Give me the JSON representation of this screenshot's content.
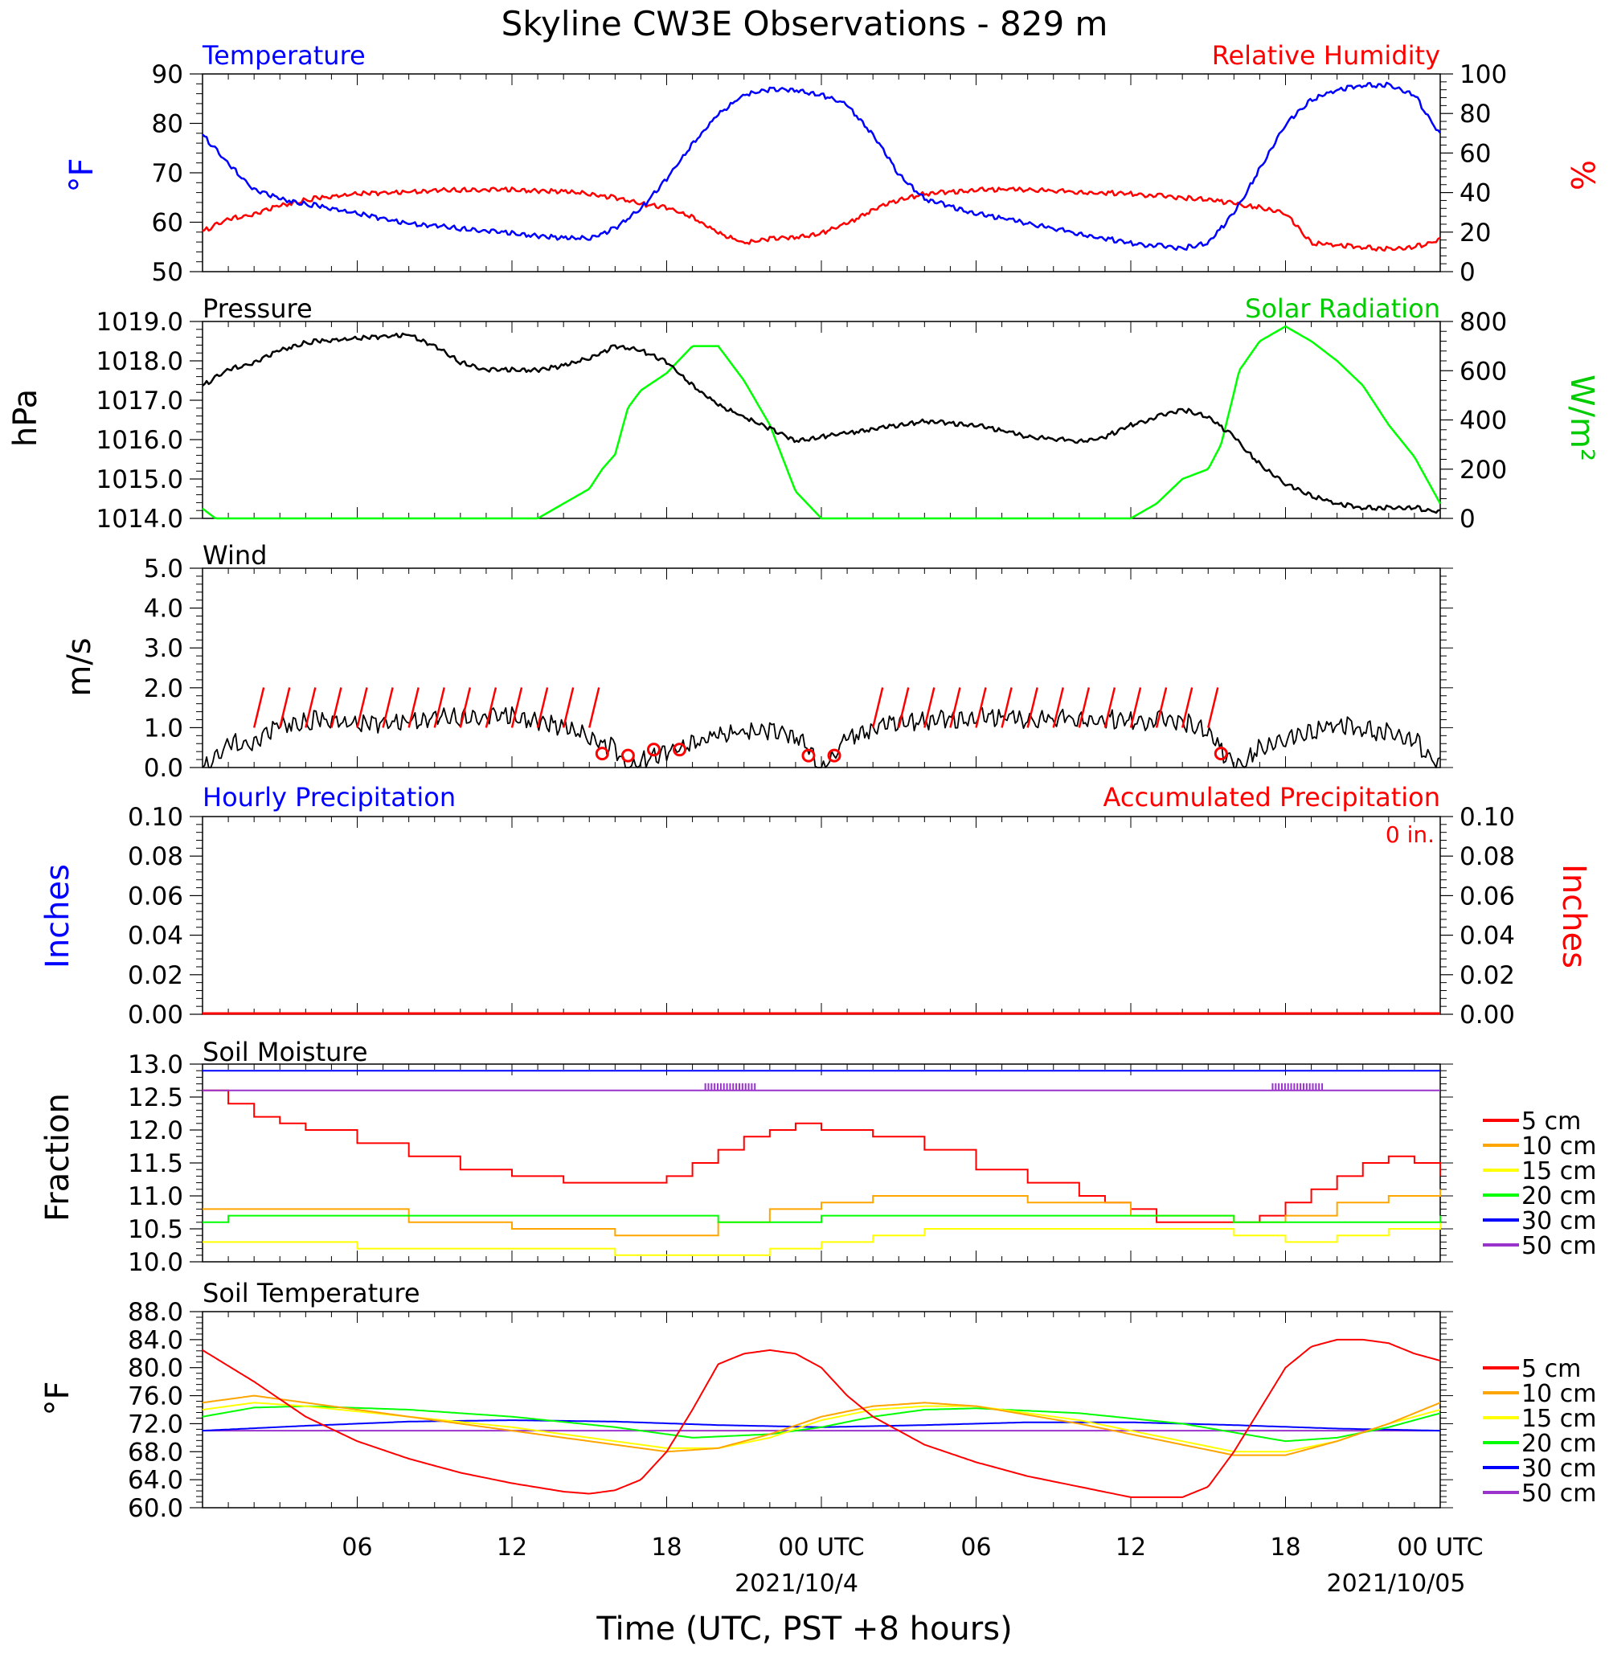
{
  "title": "Skyline CW3E Observations - 829 m",
  "time_axis": {
    "ticks": [
      "06",
      "12",
      "18",
      "00 UTC",
      "06",
      "12",
      "18",
      "00 UTC"
    ],
    "dates": [
      "2021/10/4",
      "2021/10/05"
    ],
    "xlabel": "Time (UTC, PST +8 hours)"
  },
  "colors": {
    "temperature": "#0000ff",
    "humidity": "#ff0000",
    "pressure": "#000000",
    "solar": "#00ff00",
    "wind": "#000000",
    "barb": "#ff0000"
  },
  "chart_data": [
    {
      "type": "line",
      "panel": "temperature-humidity",
      "left_title": "Temperature",
      "right_title": "Relative Humidity",
      "ylabel": "°F",
      "ylabel_right": "%",
      "ylim": [
        50,
        90
      ],
      "ylim_right": [
        0,
        100
      ],
      "yticks": [
        "90",
        "80",
        "70",
        "60",
        "50"
      ],
      "yticks_right": [
        "100",
        "80",
        "60",
        "40",
        "20",
        "0"
      ],
      "x_hours": [
        0,
        1,
        2,
        3,
        4,
        6,
        8,
        10,
        12,
        14,
        15,
        16,
        17,
        18,
        19,
        20,
        21,
        22,
        23,
        24,
        25,
        26,
        27,
        28,
        30,
        32,
        34,
        36,
        38,
        39,
        40,
        41,
        42,
        43,
        44,
        45,
        46,
        47,
        48
      ],
      "series": [
        {
          "name": "Temperature",
          "values": [
            78,
            72,
            67,
            65,
            64,
            62,
            60,
            59,
            58,
            57,
            57,
            59,
            63,
            69,
            76,
            82,
            86,
            87,
            87,
            86,
            84,
            78,
            70,
            65,
            62,
            60,
            58,
            56,
            55,
            56,
            62,
            71,
            80,
            85,
            87,
            88,
            88,
            86,
            78
          ]
        },
        {
          "name": "Relative Humidity",
          "values": [
            21,
            27,
            30,
            34,
            37,
            40,
            41,
            42,
            42,
            41,
            40,
            38,
            35,
            33,
            28,
            20,
            15,
            17,
            18,
            20,
            25,
            32,
            37,
            40,
            42,
            42,
            41,
            40,
            38,
            37,
            35,
            33,
            30,
            15,
            14,
            13,
            12,
            13,
            17
          ]
        }
      ]
    },
    {
      "type": "line",
      "panel": "pressure-solar",
      "left_title": "Pressure",
      "right_title": "Solar Radiation",
      "ylabel": "hPa",
      "ylabel_right": "W/m²",
      "ylim": [
        1014.0,
        1019.0
      ],
      "ylim_right": [
        0,
        800
      ],
      "yticks": [
        "1019.0",
        "1018.0",
        "1017.0",
        "1016.0",
        "1015.0",
        "1014.0"
      ],
      "yticks_right": [
        "800",
        "600",
        "400",
        "200",
        "0"
      ],
      "pressure_x": [
        0,
        1,
        2,
        3,
        4,
        6,
        8,
        9,
        10,
        11,
        12,
        13,
        14,
        15,
        16,
        17,
        18,
        19,
        20,
        21,
        22,
        23,
        24,
        25,
        26,
        27,
        28,
        30,
        32,
        34,
        35,
        36,
        37,
        38,
        39,
        40,
        41,
        42,
        43,
        44,
        45,
        46,
        47,
        48
      ],
      "pressure": [
        1017.4,
        1017.8,
        1018.0,
        1018.3,
        1018.5,
        1018.6,
        1018.7,
        1018.4,
        1018.0,
        1017.8,
        1017.8,
        1017.8,
        1017.9,
        1018.1,
        1018.4,
        1018.3,
        1018.0,
        1017.4,
        1016.9,
        1016.6,
        1016.3,
        1016.0,
        1016.1,
        1016.2,
        1016.3,
        1016.4,
        1016.5,
        1016.4,
        1016.1,
        1016.0,
        1016.1,
        1016.4,
        1016.6,
        1016.8,
        1016.6,
        1016.1,
        1015.4,
        1014.9,
        1014.6,
        1014.4,
        1014.3,
        1014.3,
        1014.3,
        1014.2
      ],
      "solar_x": [
        0,
        0.5,
        12,
        13,
        14,
        15,
        15.5,
        16,
        16.5,
        17,
        18,
        19,
        20,
        21,
        22,
        23,
        24,
        36,
        37,
        38,
        39,
        39.5,
        40,
        40.2,
        41,
        42,
        43,
        44,
        45,
        46,
        47,
        48
      ],
      "solar": [
        40,
        0,
        0,
        0,
        60,
        120,
        200,
        260,
        450,
        520,
        590,
        700,
        700,
        560,
        380,
        110,
        0,
        0,
        60,
        160,
        200,
        300,
        510,
        600,
        720,
        780,
        720,
        640,
        540,
        380,
        250,
        60
      ]
    },
    {
      "type": "line",
      "panel": "wind",
      "left_title": "Wind",
      "ylabel": "m/s",
      "ylim": [
        0,
        5.0
      ],
      "yticks": [
        "5.0",
        "4.0",
        "3.0",
        "2.0",
        "1.0",
        "0.0"
      ],
      "x_hours": [
        0,
        0.5,
        1,
        2,
        3,
        4,
        5,
        6,
        8,
        10,
        12,
        13,
        14,
        15,
        16,
        16.5,
        17,
        18,
        19,
        20,
        21,
        22,
        23,
        23.5,
        24,
        24.5,
        25,
        26,
        27,
        28,
        30,
        32,
        34,
        36,
        38,
        39,
        40,
        41,
        42,
        43,
        44,
        45,
        46,
        47,
        48
      ],
      "values": [
        0.1,
        0.3,
        0.7,
        0.8,
        1.2,
        1.3,
        1.3,
        1.2,
        1.3,
        1.4,
        1.4,
        1.3,
        1.1,
        0.9,
        0.6,
        0.0,
        0.3,
        0.5,
        0.7,
        0.9,
        1.0,
        1.0,
        0.9,
        0.7,
        0.0,
        0.4,
        0.9,
        1.1,
        1.3,
        1.3,
        1.4,
        1.3,
        1.4,
        1.3,
        1.3,
        1.0,
        0.1,
        0.6,
        0.8,
        1.0,
        1.2,
        1.1,
        1.0,
        0.8,
        0.2
      ],
      "barbs_x": [
        2,
        3,
        4,
        5,
        6,
        7,
        8,
        9,
        10,
        11,
        12,
        13,
        14,
        15,
        26,
        27,
        28,
        29,
        30,
        31,
        32,
        33,
        34,
        35,
        36,
        37,
        38,
        39
      ],
      "calm_x": [
        15.5,
        16.5,
        17.5,
        18.5,
        23.5,
        24.5,
        39.5
      ]
    },
    {
      "type": "line",
      "panel": "precipitation",
      "left_title": "Hourly Precipitation",
      "right_title": "Accumulated Precipitation",
      "total_label": "0 in.",
      "ylabel": "Inches",
      "ylabel_right": "Inches",
      "ylim": [
        0,
        0.1
      ],
      "yticks": [
        "0.10",
        "0.08",
        "0.06",
        "0.04",
        "0.02",
        "0.00"
      ],
      "yticks_right": [
        "0.10",
        "0.08",
        "0.06",
        "0.04",
        "0.02",
        "0.00"
      ],
      "hourly_values": [
        0.0,
        0.0
      ],
      "accumulated_values": [
        0.0,
        0.0
      ]
    },
    {
      "type": "line",
      "panel": "soil-moisture",
      "left_title": "Soil Moisture",
      "ylabel": "Fraction",
      "ylim": [
        10.0,
        13.0
      ],
      "yticks": [
        "13.0",
        "12.5",
        "12.0",
        "11.5",
        "11.0",
        "10.5",
        "10.0"
      ],
      "legend": [
        "5 cm",
        "10 cm",
        "15 cm",
        "20 cm",
        "30 cm",
        "50 cm"
      ],
      "series": [
        {
          "name": "5 cm",
          "color": "#ff0000",
          "x": [
            0,
            1,
            2,
            3,
            4,
            6,
            8,
            10,
            12,
            14,
            16,
            17,
            18,
            19,
            20,
            21,
            22,
            23,
            24,
            25,
            26,
            28,
            30,
            32,
            34,
            35,
            36,
            37,
            38,
            39,
            40,
            41,
            42,
            43,
            44,
            45,
            46,
            47,
            48
          ],
          "values": [
            12.6,
            12.4,
            12.2,
            12.1,
            12.0,
            11.8,
            11.6,
            11.4,
            11.3,
            11.2,
            11.2,
            11.2,
            11.3,
            11.5,
            11.7,
            11.9,
            12.0,
            12.1,
            12.0,
            12.0,
            11.9,
            11.7,
            11.4,
            11.2,
            11.0,
            10.9,
            10.8,
            10.6,
            10.6,
            10.6,
            10.6,
            10.7,
            10.9,
            11.1,
            11.3,
            11.5,
            11.6,
            11.5,
            11.3
          ]
        },
        {
          "name": "10 cm",
          "color": "#ffa500",
          "x": [
            0,
            4,
            8,
            12,
            16,
            18,
            20,
            22,
            24,
            26,
            28,
            32,
            36,
            40,
            42,
            44,
            46,
            48
          ],
          "values": [
            10.8,
            10.8,
            10.6,
            10.5,
            10.4,
            10.4,
            10.6,
            10.8,
            10.9,
            11.0,
            11.0,
            10.9,
            10.7,
            10.6,
            10.7,
            10.9,
            11.0,
            11.1
          ]
        },
        {
          "name": "15 cm",
          "color": "#ffff00",
          "x": [
            0,
            2,
            6,
            10,
            14,
            16,
            18,
            20,
            22,
            24,
            26,
            28,
            30,
            32,
            36,
            40,
            42,
            44,
            46,
            48
          ],
          "values": [
            10.3,
            10.3,
            10.2,
            10.2,
            10.2,
            10.1,
            10.1,
            10.1,
            10.2,
            10.3,
            10.4,
            10.5,
            10.5,
            10.5,
            10.5,
            10.4,
            10.3,
            10.4,
            10.5,
            10.6
          ]
        },
        {
          "name": "20 cm",
          "color": "#00ff00",
          "x": [
            0,
            1,
            10,
            20,
            24,
            30,
            40,
            48
          ],
          "values": [
            10.6,
            10.7,
            10.7,
            10.6,
            10.7,
            10.7,
            10.6,
            10.7
          ]
        },
        {
          "name": "30 cm",
          "color": "#0000ff",
          "x": [
            0,
            48
          ],
          "values": [
            12.9,
            12.9
          ]
        },
        {
          "name": "50 cm",
          "color": "#9933cc",
          "x": [
            0,
            48
          ],
          "values": [
            12.6,
            12.6
          ]
        }
      ]
    },
    {
      "type": "line",
      "panel": "soil-temperature",
      "left_title": "Soil Temperature",
      "ylabel": "°F",
      "ylim": [
        60.0,
        88.0
      ],
      "yticks": [
        "88.0",
        "84.0",
        "80.0",
        "76.0",
        "72.0",
        "68.0",
        "64.0",
        "60.0"
      ],
      "legend": [
        "5 cm",
        "10 cm",
        "15 cm",
        "20 cm",
        "30 cm",
        "50 cm"
      ],
      "series": [
        {
          "name": "5 cm",
          "color": "#ff0000",
          "x": [
            0,
            2,
            4,
            6,
            8,
            10,
            12,
            14,
            15,
            16,
            17,
            18,
            19,
            20,
            21,
            22,
            23,
            24,
            25,
            26,
            28,
            30,
            32,
            34,
            36,
            38,
            39,
            40,
            41,
            42,
            43,
            44,
            45,
            46,
            47,
            48
          ],
          "values": [
            82.5,
            78,
            73,
            69.5,
            67,
            65,
            63.5,
            62.3,
            62,
            62.5,
            64,
            68,
            74,
            80.5,
            82,
            82.5,
            82,
            80,
            76,
            73,
            69,
            66.5,
            64.5,
            63,
            61.5,
            61.5,
            63,
            68,
            74,
            80,
            83,
            84,
            84,
            83.5,
            82,
            81
          ]
        },
        {
          "name": "10 cm",
          "color": "#ffa500",
          "x": [
            0,
            2,
            4,
            8,
            12,
            16,
            18,
            20,
            22,
            24,
            26,
            28,
            30,
            34,
            38,
            40,
            42,
            44,
            46,
            48
          ],
          "values": [
            75,
            76,
            75,
            73,
            71,
            69,
            68,
            68.5,
            70.5,
            73,
            74.5,
            75,
            74.5,
            72,
            69,
            67.5,
            67.5,
            69.5,
            72,
            75
          ]
        },
        {
          "name": "15 cm",
          "color": "#ffff00",
          "x": [
            0,
            2,
            4,
            8,
            12,
            16,
            18,
            20,
            22,
            24,
            26,
            28,
            30,
            34,
            38,
            40,
            42,
            44,
            46,
            48
          ],
          "values": [
            74,
            75,
            74.5,
            73,
            71.5,
            69.5,
            68.5,
            68.5,
            70,
            72.5,
            74,
            74.5,
            74.5,
            72.5,
            69.5,
            68,
            68,
            69.5,
            72,
            74
          ]
        },
        {
          "name": "20 cm",
          "color": "#00ff00",
          "x": [
            0,
            2,
            4,
            8,
            12,
            16,
            19,
            22,
            24,
            26,
            28,
            30,
            34,
            38,
            42,
            44,
            46,
            48
          ],
          "values": [
            73,
            74.3,
            74.5,
            74,
            73,
            71.5,
            70,
            70.5,
            71.5,
            73,
            74,
            74.2,
            73.5,
            72,
            69.5,
            70,
            71.5,
            73.5
          ]
        },
        {
          "name": "30 cm",
          "color": "#0000ff",
          "x": [
            0,
            4,
            8,
            12,
            16,
            20,
            24,
            28,
            32,
            36,
            40,
            44,
            48
          ],
          "values": [
            71,
            71.7,
            72.3,
            72.5,
            72.3,
            71.8,
            71.5,
            71.8,
            72.2,
            72.2,
            71.8,
            71.3,
            71
          ]
        },
        {
          "name": "50 cm",
          "color": "#9933cc",
          "x": [
            0,
            48
          ],
          "values": [
            71,
            71
          ]
        }
      ]
    }
  ]
}
